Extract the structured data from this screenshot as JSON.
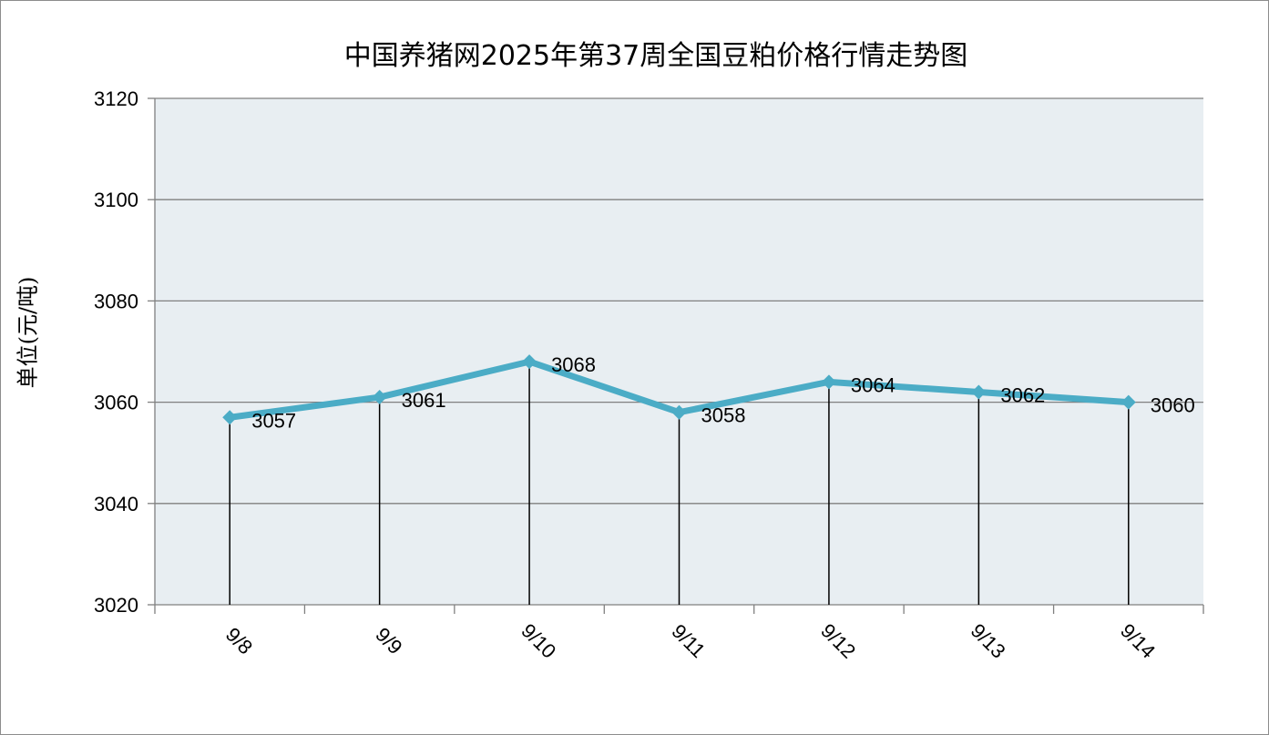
{
  "chart_data": {
    "type": "line",
    "title": "中国养猪网2025年第37周全国豆粕价格行情走势图",
    "xlabel": "",
    "ylabel": "单位(元/吨)",
    "categories": [
      "9/8",
      "9/9",
      "9/10",
      "9/11",
      "9/12",
      "9/13",
      "9/14"
    ],
    "series": [
      {
        "values": [
          3057,
          3061,
          3068,
          3058,
          3064,
          3062,
          3060
        ]
      }
    ],
    "data_labels": [
      "3057",
      "3061",
      "3068",
      "3058",
      "3064",
      "3062",
      "3060"
    ],
    "ylim": [
      3020,
      3120
    ],
    "yticks": [
      "3020",
      "3040",
      "3060",
      "3080",
      "3100",
      "3120"
    ],
    "grid": "horizontal",
    "drop_lines": true,
    "colors": {
      "line": "#4bacc6",
      "plot_background": "#e8eef2",
      "grid": "#808080",
      "drop_line": "#000000"
    }
  }
}
